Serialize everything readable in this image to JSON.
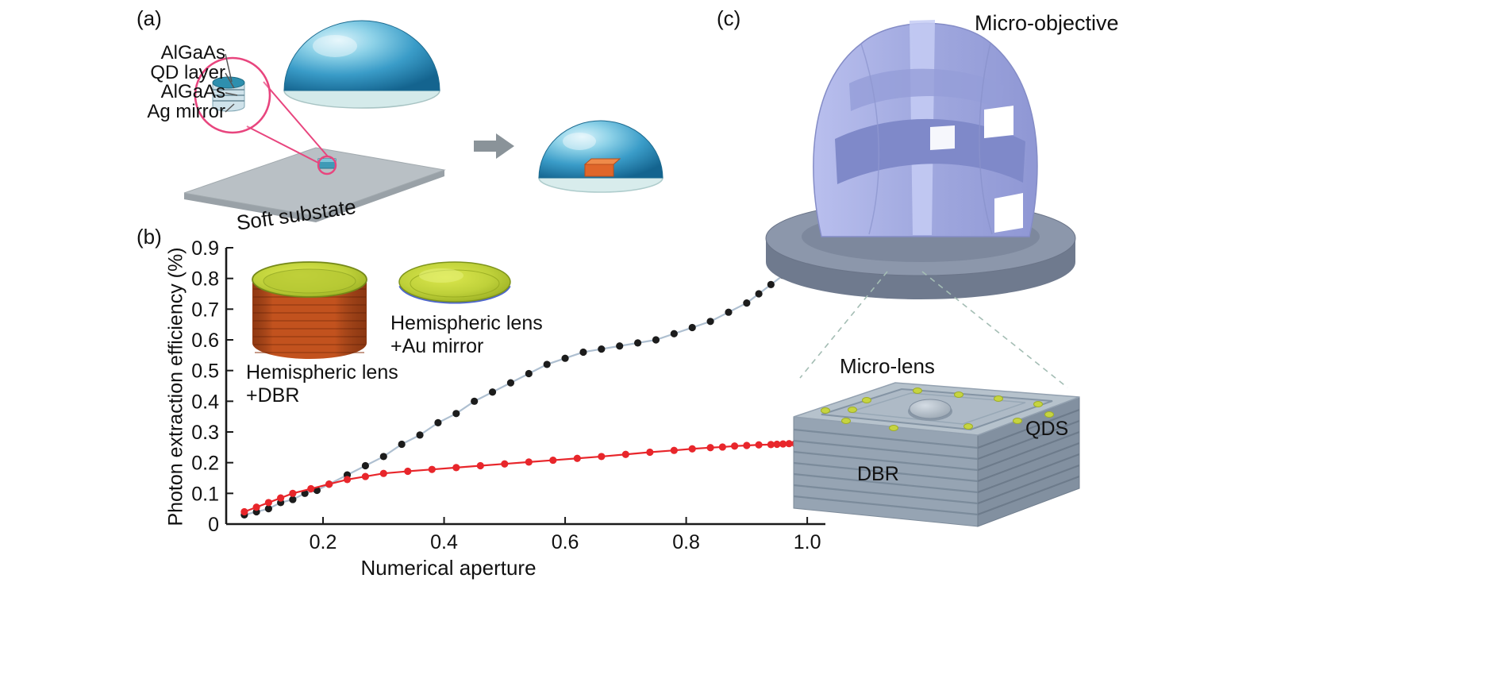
{
  "panel_a": {
    "label": "(a)",
    "layer_labels": [
      "AlGaAs",
      "QD layer",
      "AlGaAs",
      "Ag mirror"
    ],
    "substrate_label": "Soft substate"
  },
  "panel_b": {
    "label": "(b)",
    "annotation_au": "Hemispheric lens\n+Au mirror",
    "annotation_dbr": "Hemispheric lens\n+DBR"
  },
  "panel_c": {
    "label": "(c)",
    "title": "Micro-objective",
    "micro_lens_label": "Micro-lens",
    "qds_label": "QDS",
    "dbr_label": "DBR"
  },
  "chart_data": {
    "type": "scatter",
    "title": "",
    "xlabel": "Numerical aperture",
    "ylabel": "Photon extraction efficiency (%)",
    "xlim": [
      0.04,
      1.03
    ],
    "ylim": [
      0,
      0.9
    ],
    "x_ticks": [
      0.2,
      0.4,
      0.6,
      0.8,
      1.0
    ],
    "y_ticks": [
      0,
      0.1,
      0.2,
      0.3,
      0.4,
      0.5,
      0.6,
      0.7,
      0.8,
      0.9
    ],
    "grid": false,
    "legend_position": "inside-annotations",
    "series": [
      {
        "name": "Hemispheric lens +Au mirror",
        "marker_color": "#1c1c1c",
        "line_color": "#aebfd0",
        "x": [
          0.07,
          0.09,
          0.11,
          0.13,
          0.15,
          0.17,
          0.19,
          0.21,
          0.24,
          0.27,
          0.3,
          0.33,
          0.36,
          0.39,
          0.42,
          0.45,
          0.48,
          0.51,
          0.54,
          0.57,
          0.6,
          0.63,
          0.66,
          0.69,
          0.72,
          0.75,
          0.78,
          0.81,
          0.84,
          0.87,
          0.9,
          0.92,
          0.94,
          0.96,
          0.98,
          1.0
        ],
        "y": [
          0.03,
          0.04,
          0.05,
          0.07,
          0.08,
          0.1,
          0.11,
          0.13,
          0.16,
          0.19,
          0.22,
          0.26,
          0.29,
          0.33,
          0.36,
          0.4,
          0.43,
          0.46,
          0.49,
          0.52,
          0.54,
          0.56,
          0.57,
          0.58,
          0.59,
          0.6,
          0.62,
          0.64,
          0.66,
          0.69,
          0.72,
          0.75,
          0.78,
          0.81,
          0.83,
          0.86
        ]
      },
      {
        "name": "Hemispheric lens +DBR",
        "marker_color": "#e8262b",
        "line_color": "#e8262b",
        "x": [
          0.07,
          0.09,
          0.11,
          0.13,
          0.15,
          0.18,
          0.21,
          0.24,
          0.27,
          0.3,
          0.34,
          0.38,
          0.42,
          0.46,
          0.5,
          0.54,
          0.58,
          0.62,
          0.66,
          0.7,
          0.74,
          0.78,
          0.81,
          0.84,
          0.86,
          0.88,
          0.9,
          0.92,
          0.94,
          0.95,
          0.96,
          0.97,
          0.98,
          0.99,
          1.0
        ],
        "y": [
          0.04,
          0.055,
          0.07,
          0.085,
          0.1,
          0.115,
          0.13,
          0.145,
          0.155,
          0.165,
          0.172,
          0.178,
          0.184,
          0.19,
          0.196,
          0.202,
          0.208,
          0.214,
          0.22,
          0.227,
          0.234,
          0.24,
          0.245,
          0.249,
          0.251,
          0.254,
          0.256,
          0.258,
          0.259,
          0.26,
          0.261,
          0.262,
          0.262,
          0.263,
          0.264
        ]
      }
    ]
  },
  "colors": {
    "dome_blue_dark": "#14648f",
    "dome_blue_light": "#d8f2fa",
    "substrate_gray": "#b9c0c5",
    "magnifier_pink": "#e8457e",
    "chip_orange": "#e0662a",
    "lens_green": "#c2d13d",
    "cylinder_orange": "#c2521e",
    "objective_lavender": "#a2aae0",
    "disc_gray": "#8c97ab",
    "block_gray": "#96a4b3"
  }
}
